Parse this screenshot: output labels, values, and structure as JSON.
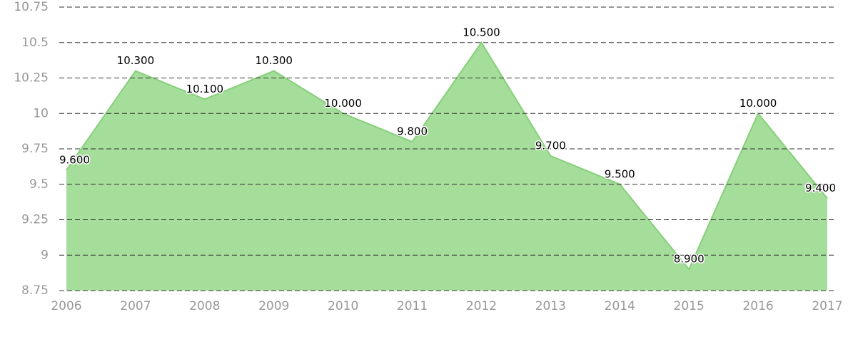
{
  "chart_data": {
    "type": "area",
    "categories": [
      "2006",
      "2007",
      "2008",
      "2009",
      "2010",
      "2011",
      "2012",
      "2013",
      "2014",
      "2015",
      "2016",
      "2017"
    ],
    "values": [
      9.6,
      10.3,
      10.1,
      10.3,
      10.0,
      9.8,
      10.5,
      9.7,
      9.5,
      8.9,
      10.0,
      9.4
    ],
    "value_labels": [
      "9.600",
      "10.300",
      "10.100",
      "10.300",
      "10.000",
      "9.800",
      "10.500",
      "9.700",
      "9.500",
      "8.900",
      "10.000",
      "9.400"
    ],
    "color": "#a5dd9b",
    "ylim": [
      8.75,
      10.75
    ],
    "yticks": [
      8.75,
      9,
      9.25,
      9.5,
      9.75,
      10,
      10.25,
      10.5,
      10.75
    ],
    "grid": true
  }
}
